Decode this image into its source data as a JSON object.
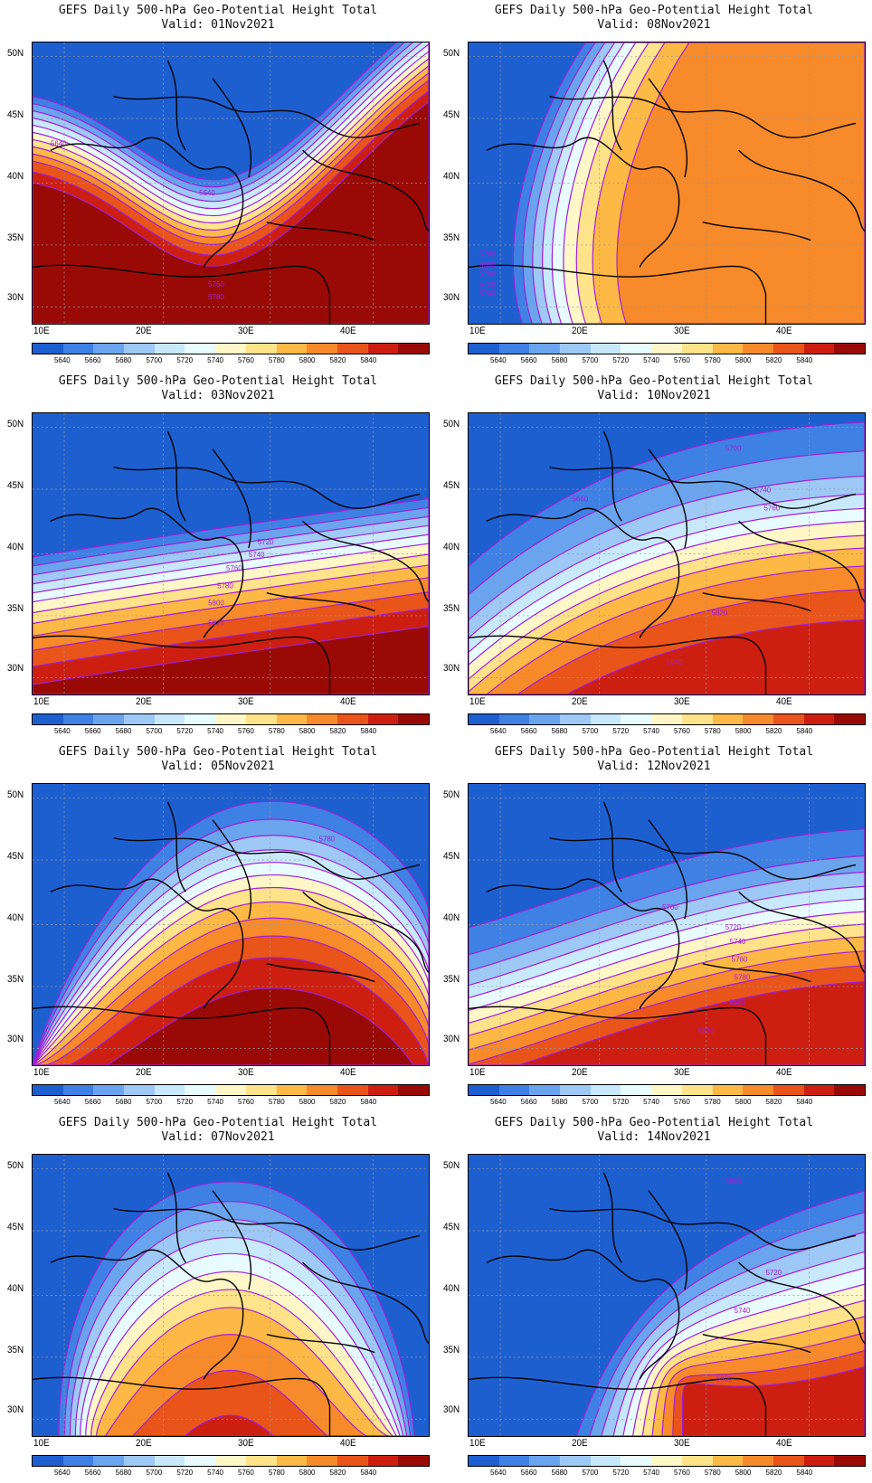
{
  "colorbar": {
    "colors": [
      "#1e5fd0",
      "#3f80e4",
      "#6aa4ee",
      "#9ec8f6",
      "#c8e8fb",
      "#e8fbff",
      "#fff7c8",
      "#ffe38a",
      "#fdb945",
      "#f78a2a",
      "#e9541a",
      "#cc1f12",
      "#990a06"
    ],
    "labels": [
      "5640",
      "5660",
      "5680",
      "5700",
      "5720",
      "5740",
      "5760",
      "5780",
      "5800",
      "5820",
      "5840"
    ]
  },
  "axes": {
    "xticks": [
      "10E",
      "20E",
      "30E",
      "40E"
    ],
    "yticks": [
      "50N",
      "45N",
      "40N",
      "35N",
      "30N"
    ]
  },
  "contour_color": "#a11fd6",
  "panels": [
    {
      "title": "GEFS Daily 500-hPa Geo-Potential Height Total",
      "valid": "Valid: 01Nov2021",
      "contour_labels": [
        "5640",
        "5640",
        "5760",
        "5780"
      ]
    },
    {
      "title": "GEFS Daily 500-hPa Geo-Potential Height Total",
      "valid": "Valid: 08Nov2021",
      "contour_labels": [
        "5780",
        "5680",
        "5700",
        "5720",
        "5740"
      ]
    },
    {
      "title": "GEFS Daily 500-hPa Geo-Potential Height Total",
      "valid": "Valid: 03Nov2021",
      "contour_labels": [
        "5720",
        "5740",
        "5760",
        "5780",
        "5800",
        "5820"
      ]
    },
    {
      "title": "GEFS Daily 500-hPa Geo-Potential Height Total",
      "valid": "Valid: 10Nov2021",
      "contour_labels": [
        "5700",
        "5740",
        "5760",
        "5660",
        "5820",
        "5840"
      ]
    },
    {
      "title": "GEFS Daily 500-hPa Geo-Potential Height Total",
      "valid": "Valid: 05Nov2021",
      "contour_labels": [
        "5780"
      ]
    },
    {
      "title": "GEFS Daily 500-hPa Geo-Potential Height Total",
      "valid": "Valid: 12Nov2021",
      "contour_labels": [
        "5700",
        "5720",
        "5740",
        "5760",
        "5780",
        "5800",
        "5820"
      ]
    },
    {
      "title": "GEFS Daily 500-hPa Geo-Potential Height Total",
      "valid": "Valid: 07Nov2021",
      "contour_labels": []
    },
    {
      "title": "GEFS Daily 500-hPa Geo-Potential Height Total",
      "valid": "Valid: 14Nov2021",
      "contour_labels": [
        "5680",
        "5720",
        "5740",
        "5800"
      ]
    }
  ]
}
